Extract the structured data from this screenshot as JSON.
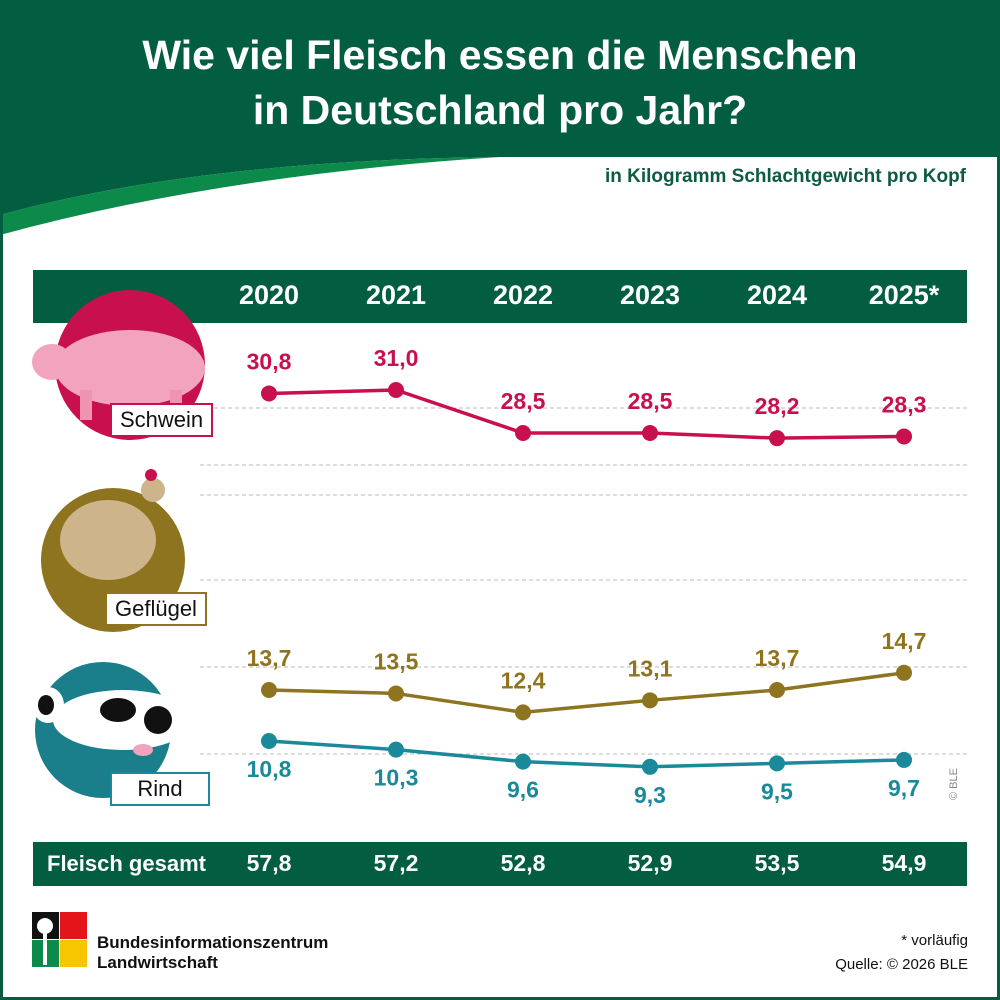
{
  "header": {
    "title_line1": "Wie viel Fleisch essen die Menschen",
    "title_line2": "in Deutschland pro Jahr?",
    "subtitle": "in Kilogramm Schlachtgewicht pro Kopf"
  },
  "chart_data": {
    "type": "line",
    "title": "Wie viel Fleisch essen die Menschen in Deutschland pro Jahr?",
    "subtitle": "in Kilogramm Schlachtgewicht pro Kopf",
    "categories": [
      "2020",
      "2021",
      "2022",
      "2023",
      "2024",
      "2025*"
    ],
    "series": [
      {
        "name": "Schwein",
        "color": "#C8104E",
        "values": [
          30.8,
          31.0,
          28.5,
          28.5,
          28.2,
          28.3
        ],
        "labels": [
          "30,8",
          "31,0",
          "28,5",
          "28,5",
          "28,2",
          "28,3"
        ]
      },
      {
        "name": "Geflügel",
        "color": "#8F7420",
        "values": [
          13.7,
          13.5,
          12.4,
          13.1,
          13.7,
          14.7
        ],
        "labels": [
          "13,7",
          "13,5",
          "12,4",
          "13,1",
          "13,7",
          "14,7"
        ]
      },
      {
        "name": "Rind",
        "color": "#1A8A9A",
        "values": [
          10.8,
          10.3,
          9.6,
          9.3,
          9.5,
          9.7
        ],
        "labels": [
          "10,8",
          "10,3",
          "9,6",
          "9,3",
          "9,5",
          "9,7"
        ]
      }
    ],
    "total": {
      "label": "Fleisch gesamt",
      "values": [
        "57,8",
        "57,2",
        "52,8",
        "52,9",
        "53,5",
        "54,9"
      ]
    },
    "grid": "dashed horizontal"
  },
  "footer": {
    "org_line1": "Bundesinformationszentrum",
    "org_line2": "Landwirtschaft",
    "note": "* vorläufig",
    "source": "Quelle: © 2026 BLE",
    "copyright": "© BLE"
  },
  "colors": {
    "brand_green": "#035E41",
    "accent_green": "#0B8A4A"
  }
}
